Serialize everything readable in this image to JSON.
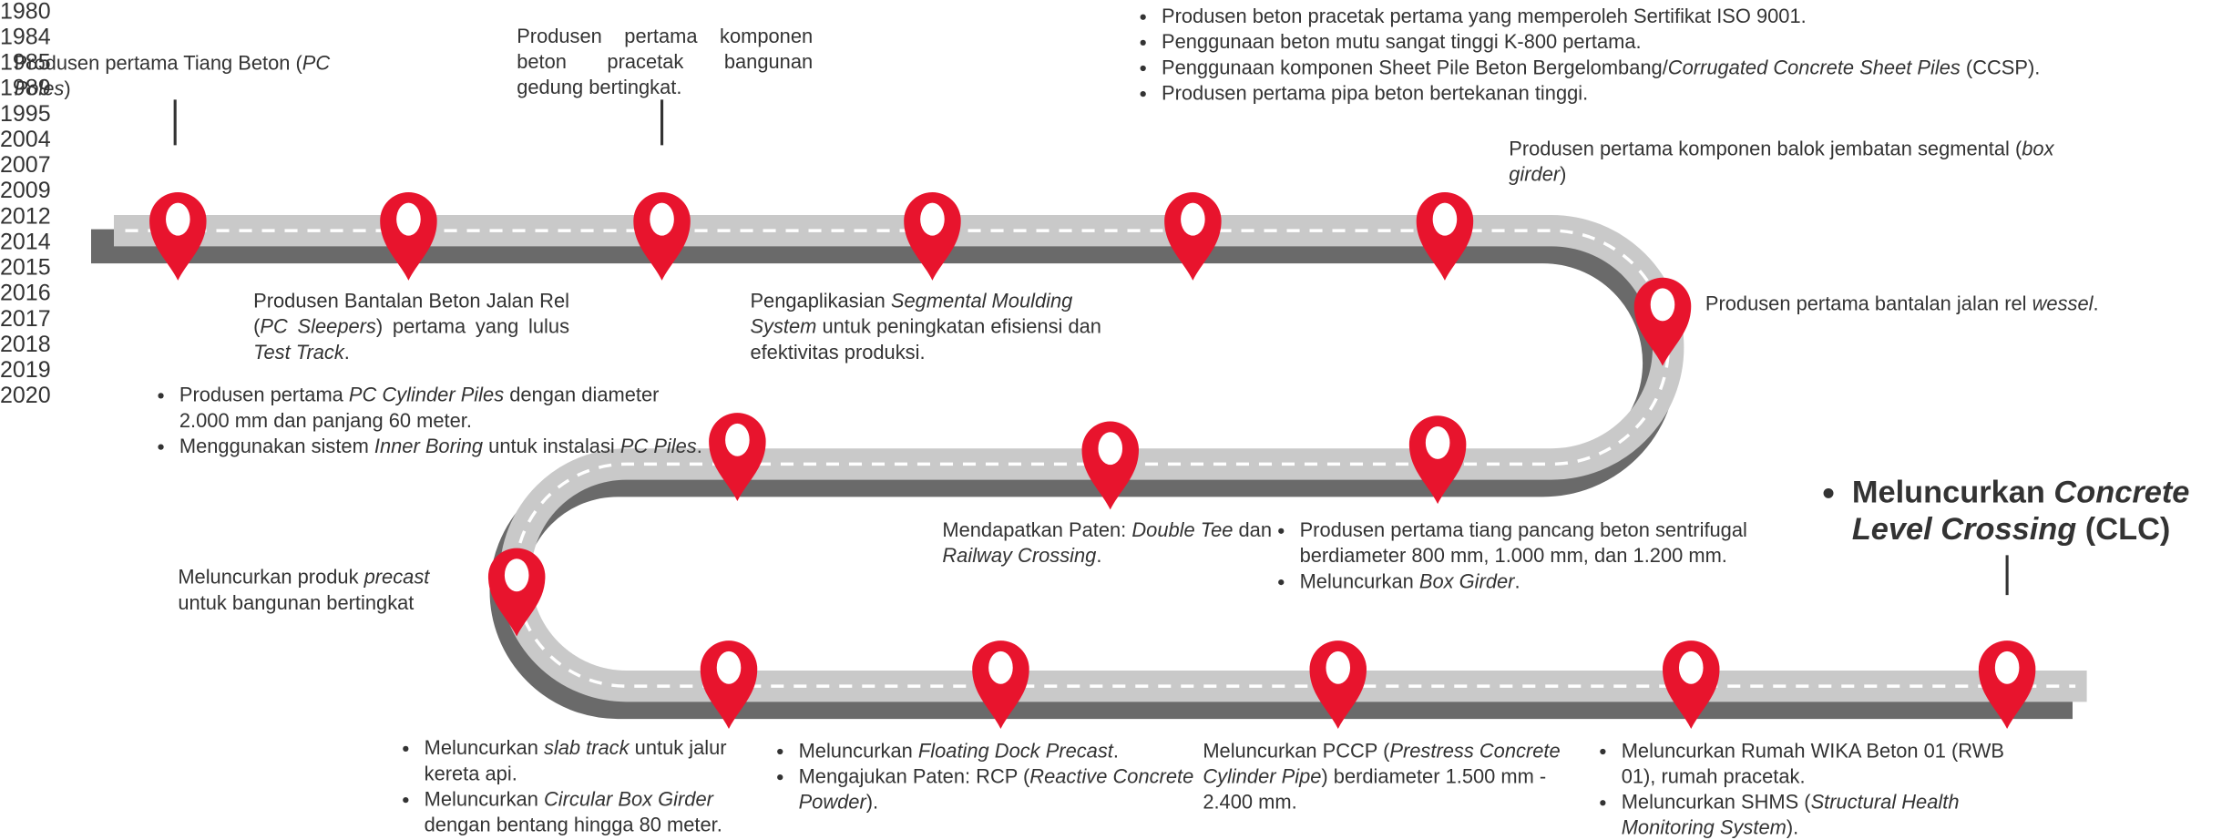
{
  "milestones": [
    {
      "year": "1980",
      "text": [
        "Produsen pertama Tiang Beton (",
        {
          "text": "PC Poles",
          "italic": true
        },
        ")"
      ]
    },
    {
      "year": "1984",
      "text": [
        "Produsen Bantalan Beton Jalan Rel (",
        {
          "text": "PC Sleepers",
          "italic": true
        },
        ") pertama yang lulus ",
        {
          "text": "Test Track",
          "italic": true
        },
        "."
      ]
    },
    {
      "year": "1985",
      "text": [
        "Produsen pertama komponen beton pracetak bangunan gedung bertingkat."
      ]
    },
    {
      "year": "1989",
      "text": [
        "Pengaplikasian ",
        {
          "text": "Segmental Moulding System",
          "italic": true
        },
        " untuk peningkatan efisiensi dan efektivitas produksi."
      ]
    },
    {
      "year": "1995",
      "items": [
        [
          "Produsen beton pracetak pertama yang memperoleh Sertifikat ISO 9001."
        ],
        [
          "Penggunaan beton mutu sangat tinggi K-800 pertama."
        ],
        [
          "Penggunaan komponen Sheet Pile Beton Bergelombang/",
          {
            "text": "Corrugated Concrete Sheet Piles",
            "italic": true
          },
          " (CCSP)."
        ],
        [
          "Produsen pertama pipa beton bertekanan tinggi."
        ]
      ]
    },
    {
      "year": "2004",
      "text": [
        "Produsen pertama komponen balok jembatan segmental (",
        {
          "text": "box girder",
          "italic": true
        },
        ")"
      ]
    },
    {
      "year": "2007",
      "text": [
        "Produsen pertama bantalan jalan rel ",
        {
          "text": "wessel",
          "italic": true
        },
        "."
      ]
    },
    {
      "year": "2009",
      "items": [
        [
          "Produsen pertama tiang pancang beton sentrifugal berdiameter 800 mm, 1.000 mm, dan 1.200 mm."
        ],
        [
          "Meluncurkan ",
          {
            "text": "Box Girder",
            "italic": true
          },
          "."
        ]
      ]
    },
    {
      "year": "2012",
      "text": [
        "Mendapatkan Paten: ",
        {
          "text": "Double Tee",
          "italic": true
        },
        " dan ",
        {
          "text": "Railway Crossing",
          "italic": true
        },
        "."
      ]
    },
    {
      "year": "2014",
      "items": [
        [
          "Produsen pertama ",
          {
            "text": "PC Cylinder Piles",
            "italic": true
          },
          " dengan diameter 2.000 mm dan panjang 60 meter."
        ],
        [
          "Menggunakan sistem ",
          {
            "text": "Inner Boring",
            "italic": true
          },
          " untuk instalasi ",
          {
            "text": "PC Piles",
            "italic": true
          },
          "."
        ]
      ]
    },
    {
      "year": "2015",
      "text": [
        "Meluncurkan produk ",
        {
          "text": "precast",
          "italic": true
        },
        " untuk bangunan bertingkat"
      ]
    },
    {
      "year": "2016",
      "items": [
        [
          "Meluncurkan ",
          {
            "text": "slab track",
            "italic": true
          },
          " untuk jalur kereta api."
        ],
        [
          "Meluncurkan ",
          {
            "text": "Circular Box Girder",
            "italic": true
          },
          " dengan bentang hingga 80 meter."
        ]
      ]
    },
    {
      "year": "2017",
      "items": [
        [
          "Meluncurkan ",
          {
            "text": "Floating Dock Precast",
            "italic": true
          },
          "."
        ],
        [
          "Mengajukan Paten: RCP (",
          {
            "text": "Reactive Concrete Powder",
            "italic": true
          },
          ")."
        ]
      ]
    },
    {
      "year": "2018",
      "text": [
        "Meluncurkan PCCP (",
        {
          "text": "Prestress Concrete Cylinder Pipe",
          "italic": true
        },
        ") berdiameter 1.500 mm - 2.400 mm."
      ]
    },
    {
      "year": "2019",
      "items": [
        [
          "Meluncurkan Rumah WIKA Beton 01 (RWB 01), rumah pracetak."
        ],
        [
          "Meluncurkan SHMS (",
          {
            "text": "Structural Health Monitoring System",
            "italic": true
          },
          ")."
        ]
      ]
    },
    {
      "year": "2020",
      "items": [
        [
          "Meluncurkan ",
          {
            "text": "Concrete Level Crossing",
            "italic": true
          },
          " (CLC)"
        ]
      ]
    }
  ]
}
